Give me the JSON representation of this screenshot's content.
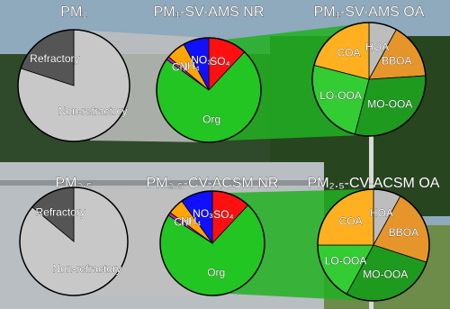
{
  "chart_data": [
    {
      "type": "pie",
      "title": "PM₁",
      "categories": [
        "Non-refractory",
        "Refractory"
      ],
      "values": [
        80,
        20
      ],
      "colors": [
        "#c8c8c8",
        "#555555"
      ]
    },
    {
      "type": "pie",
      "title": "PM₁-SV-AMS NR",
      "categories": [
        "SO₄",
        "Org",
        "Chl",
        "NH₄",
        "NO₃"
      ],
      "values": [
        12,
        73,
        1,
        6,
        8
      ],
      "colors": [
        "#ff1010",
        "#22c522",
        "#c020c0",
        "#ffa500",
        "#1010ff"
      ]
    },
    {
      "type": "pie",
      "title": "PM₁-SV-AMS OA",
      "categories": [
        "HOA",
        "BBOA",
        "MO-OOA",
        "LO-OOA",
        "COA"
      ],
      "values": [
        8,
        16,
        30,
        25,
        21
      ],
      "colors": [
        "#bdbdbd",
        "#e6952a",
        "#1e9a1e",
        "#33cc33",
        "#ffb020"
      ]
    },
    {
      "type": "pie",
      "title": "PM₂.₅",
      "categories": [
        "Non-refractory",
        "Refractory"
      ],
      "values": [
        86,
        14
      ],
      "colors": [
        "#c8c8c8",
        "#555555"
      ]
    },
    {
      "type": "pie",
      "title": "PM₂.₅-CV-ACSM NR",
      "categories": [
        "SO₄",
        "Org",
        "Chl",
        "NH₄",
        "NO₃"
      ],
      "values": [
        12,
        72,
        1,
        5,
        10
      ],
      "colors": [
        "#ff1010",
        "#22c522",
        "#c020c0",
        "#ffa500",
        "#1010ff"
      ]
    },
    {
      "type": "pie",
      "title": "PM₂.₅-CV-ACSM OA",
      "categories": [
        "HOA",
        "BBOA",
        "MO-OOA",
        "LO-OOA",
        "COA"
      ],
      "values": [
        8,
        22,
        28,
        17,
        25
      ],
      "colors": [
        "#bdbdbd",
        "#e6952a",
        "#1e9a1e",
        "#33cc33",
        "#ffb020"
      ]
    }
  ]
}
